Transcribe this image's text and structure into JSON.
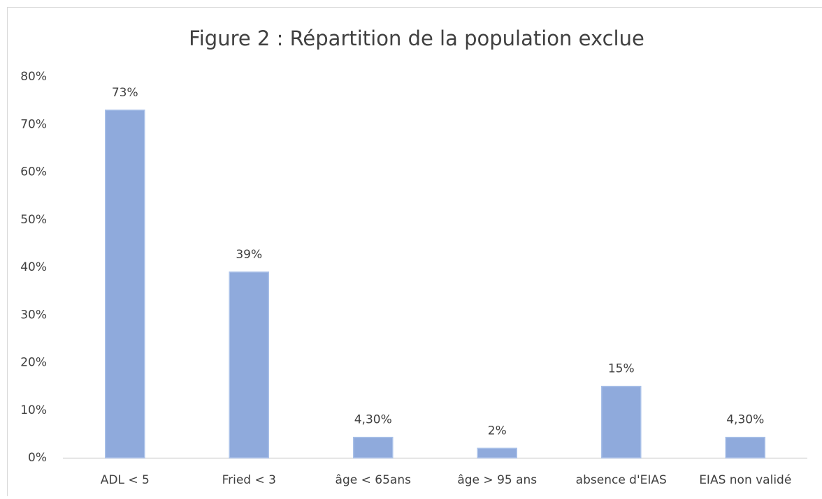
{
  "chart_data": {
    "type": "bar",
    "title": "Figure 2 : Répartition de la population exclue",
    "categories": [
      "ADL < 5",
      "Fried < 3",
      "âge < 65ans",
      "âge > 95 ans",
      "absence d'EIAS",
      "EIAS non validé"
    ],
    "values": [
      73,
      39,
      4.3,
      2,
      15,
      4.3
    ],
    "value_labels": [
      "73%",
      "39%",
      "4,30%",
      "2%",
      "15%",
      "4,30%"
    ],
    "color": "#8faadc",
    "ylim": [
      0,
      80
    ],
    "yticks": [
      {
        "value": 0,
        "label": "0%"
      },
      {
        "value": 10,
        "label": "10%"
      },
      {
        "value": 20,
        "label": "20%"
      },
      {
        "value": 30,
        "label": "30%"
      },
      {
        "value": 40,
        "label": "40%"
      },
      {
        "value": 50,
        "label": "50%"
      },
      {
        "value": 60,
        "label": "60%"
      },
      {
        "value": 70,
        "label": "70%"
      },
      {
        "value": 80,
        "label": "80%"
      }
    ],
    "grid": false
  }
}
